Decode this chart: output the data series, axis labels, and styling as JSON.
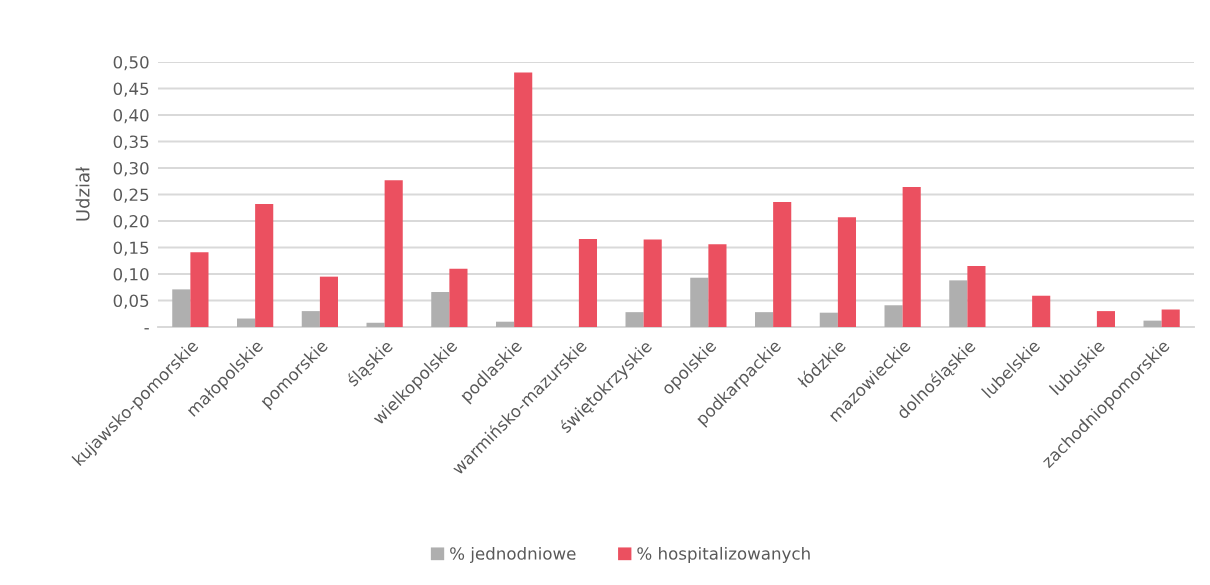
{
  "chart_data": {
    "type": "bar",
    "categories": [
      "kujawsko-pomorskie",
      "małopolskie",
      "pomorskie",
      "śląskie",
      "wielkopolskie",
      "podlaskie",
      "warmińsko-mazurskie",
      "świętokrzyskie",
      "opolskie",
      "podkarpackie",
      "łódzkie",
      "mazowieckie",
      "dolnośląskie",
      "lubelskie",
      "lubuskie",
      "zachodniopomorskie"
    ],
    "series": [
      {
        "name": "% jednodniowe",
        "color": "#afafaf",
        "values": [
          0.071,
          0.016,
          0.03,
          0.008,
          0.066,
          0.01,
          0,
          0.028,
          0.093,
          0.028,
          0.027,
          0.041,
          0.088,
          0,
          0,
          0.012
        ]
      },
      {
        "name": "% hospitalizowanych",
        "color": "#eb5060",
        "values": [
          0.141,
          0.232,
          0.095,
          0.277,
          0.11,
          0.48,
          0.166,
          0.165,
          0.156,
          0.236,
          0.207,
          0.264,
          0.115,
          0.059,
          0.03,
          0.033
        ]
      }
    ],
    "ylabel": "Udział",
    "ylim": [
      0,
      0.5
    ],
    "yticks": [
      {
        "value": 0,
        "label": "-"
      },
      {
        "value": 0.05,
        "label": "0,05"
      },
      {
        "value": 0.1,
        "label": "0,10"
      },
      {
        "value": 0.15,
        "label": "0,15"
      },
      {
        "value": 0.2,
        "label": "0,20"
      },
      {
        "value": 0.25,
        "label": "0,25"
      },
      {
        "value": 0.3,
        "label": "0,30"
      },
      {
        "value": 0.35,
        "label": "0,35"
      },
      {
        "value": 0.4,
        "label": "0,40"
      },
      {
        "value": 0.45,
        "label": "0,45"
      },
      {
        "value": 0.5,
        "label": "0,50"
      }
    ],
    "grid": "y",
    "legend": "bottom"
  }
}
